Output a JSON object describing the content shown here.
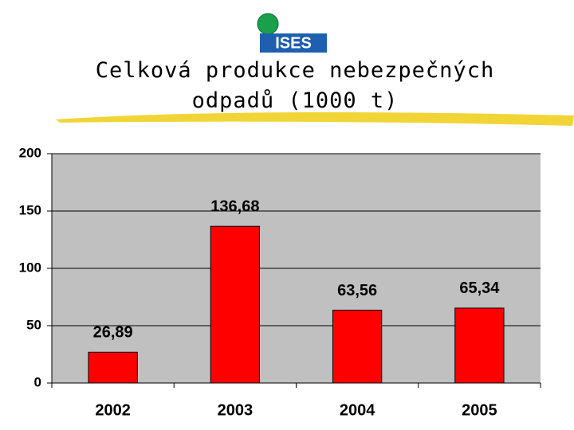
{
  "logo_text": "ISES",
  "chart_data": {
    "type": "bar",
    "title": "Celková produkce nebezpečných odpadů (1000 t)",
    "categories": [
      "2002",
      "2003",
      "2004",
      "2005"
    ],
    "values": [
      26.89,
      136.68,
      63.56,
      65.34
    ],
    "value_labels": [
      "26,89",
      "136,68",
      "63,56",
      "65,34"
    ],
    "color": "#ff0000",
    "ylim": [
      0,
      200
    ],
    "yticks": [
      0,
      50,
      100,
      150,
      200
    ],
    "grid": true
  }
}
